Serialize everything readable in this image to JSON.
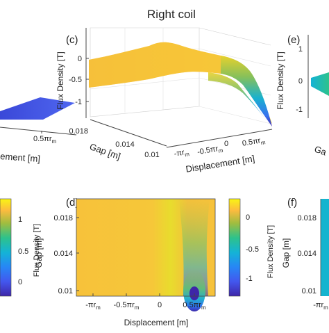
{
  "title": "Right coil",
  "chart_data": [
    {
      "panel": "(c)",
      "type": "surface",
      "zlabel": "Flux Density [T]",
      "xlabel": "Displacement [m]",
      "ylabel": "Gap [m]",
      "z_ticks": [
        "0",
        "-0.5",
        "-1"
      ],
      "gap_ticks": [
        "0.018",
        "0.014",
        "0.01"
      ],
      "disp_ticks": [
        "-πr",
        "-0.5πr",
        "0",
        "0.5πr"
      ],
      "disp_ticks_sub": [
        "m",
        "m",
        "",
        "m"
      ],
      "zlim": [
        -1.2,
        0.1
      ],
      "displacement_range": [
        "-πr_m",
        "0.5πr_m"
      ],
      "gap_range": [
        0.01,
        0.018
      ],
      "profile": [
        {
          "x": -1.0,
          "z": 0.05
        },
        {
          "x": -0.5,
          "z": 0.05
        },
        {
          "x": -0.2,
          "z": 0.0
        },
        {
          "x": 0.0,
          "z": -0.05
        },
        {
          "x": 0.2,
          "z": -0.1
        },
        {
          "x": 0.4,
          "z": -0.5
        },
        {
          "x": 0.5,
          "z": -1.2
        }
      ]
    },
    {
      "panel": "(d)",
      "type": "heatmap",
      "xlabel": "Displacement [m]",
      "ylabel": "Gap [m]",
      "colorbar_label": "Flux Density [T]",
      "x_ticks": [
        "-πr",
        "-0.5πr",
        "0",
        "0.5πr"
      ],
      "x_ticks_sub": [
        "m",
        "m",
        "",
        "m"
      ],
      "y_ticks": [
        "0.018",
        "0.014",
        "0.01"
      ],
      "colorbar_ticks": [
        "0",
        "-0.5",
        "-1"
      ],
      "colorbar_range": [
        -1.2,
        0.1
      ]
    },
    {
      "panel": "(e)",
      "type": "surface",
      "zlabel": "Flux Density [T]",
      "ylabel": "Ga",
      "z_ticks": [
        "1",
        "0",
        "-1"
      ]
    },
    {
      "panel": "(f)",
      "type": "heatmap",
      "ylabel": "Gap [m]",
      "y_ticks": [
        "0.018",
        "0.014",
        "0.01"
      ],
      "x_ticks": [
        "-πr"
      ],
      "x_ticks_sub": [
        "m"
      ]
    },
    {
      "panel": "left-partial",
      "type": "surface",
      "xlabel_fragment": "ement [m]",
      "disp_tick": "0.5πr",
      "disp_tick_sub": "m",
      "colorbar_ticks": [
        "1",
        "0.5",
        "0"
      ],
      "colorbar_label": "Flux Density [T]"
    }
  ]
}
